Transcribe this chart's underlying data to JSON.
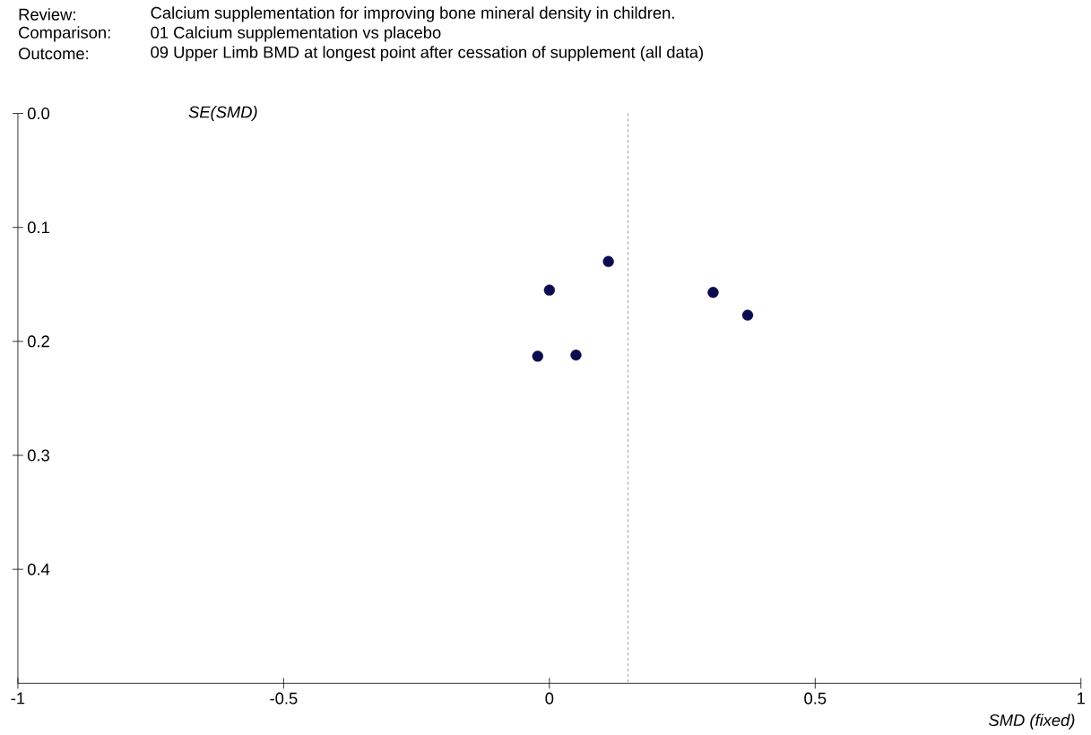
{
  "chart_data": {
    "type": "scatter",
    "x": [
      0.111,
      0.0,
      -0.022,
      0.05,
      0.308,
      0.373
    ],
    "values": [
      0.13,
      0.155,
      0.213,
      0.212,
      0.157,
      0.177
    ],
    "color": "#0b0b4f",
    "marker": "circle",
    "xlim": [
      -1,
      1
    ],
    "xticks": [
      -1,
      -0.5,
      0,
      0.5,
      1
    ],
    "ylim": [
      0.5,
      0
    ],
    "yticks": [
      {
        "value": 0,
        "label": "0.0"
      },
      0.1,
      0.2,
      0.3,
      0.4
    ],
    "xlabel": "SMD (fixed)",
    "ylabel": "SE(SMD)",
    "ref_lines": [
      {
        "axis": "x",
        "value": 0.148,
        "line_style": "dashed"
      }
    ],
    "annotations": [
      "Review:",
      "Calcium supplementation for improving bone mineral density in children.",
      "Comparison:",
      "01 Calcium supplementation vs placebo",
      "Outcome:",
      "09 Upper Limb BMD at longest point after cessation of supplement (all data)"
    ]
  }
}
